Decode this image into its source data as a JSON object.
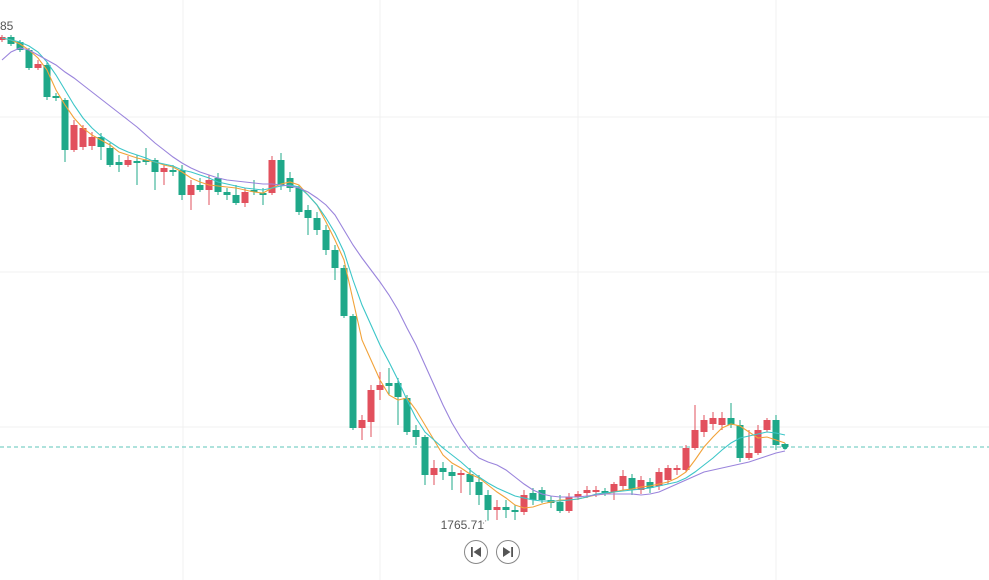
{
  "chart_data": {
    "type": "candlestick",
    "ylim": [
      1736,
      2026
    ],
    "up_color": "#e2505d",
    "down_color": "#1fa889",
    "open": [
      2006,
      2007.5,
      2005,
      2001,
      1992,
      1993.5,
      1978,
      1976,
      1951,
      1952.5,
      1953,
      1957.5,
      1952,
      1945,
      1943.5,
      1945.5,
      1946,
      1946,
      1940,
      1941,
      1941,
      1928.5,
      1933.5,
      1931,
      1937,
      1930,
      1928.5,
      1924.5,
      1931,
      1929.5,
      1929.5,
      1946,
      1937,
      1932,
      1921,
      1917,
      1911,
      1901,
      1892,
      1868,
      1812,
      1815,
      1831,
      1834.5,
      1834.5,
      1827,
      1811,
      1807.5,
      1788.5,
      1792,
      1790,
      1788.5,
      1789,
      1785,
      1778.5,
      1771,
      1772.5,
      1771,
      1770,
      1779.5,
      1781,
      1776,
      1775,
      1770.5,
      1777.5,
      1779.5,
      1780,
      1780.5,
      1780,
      1783,
      1787,
      1781,
      1785,
      1783,
      1786,
      1791,
      1791,
      1802,
      1810,
      1814,
      1813.5,
      1817,
      1813.5,
      1797,
      1799.5,
      1811,
      1816,
      1804
    ],
    "high": [
      2008.5,
      2008.5,
      2006,
      2002,
      1996,
      1995,
      1979.5,
      1977,
      1966,
      1963.5,
      1960,
      1959.5,
      1954.5,
      1948.5,
      1948,
      1948.5,
      1952,
      1947,
      1944,
      1943.5,
      1943.5,
      1936,
      1937,
      1938.5,
      1939.5,
      1932,
      1933.5,
      1932,
      1936,
      1932,
      1948,
      1949.5,
      1940,
      1933.5,
      1923.5,
      1920,
      1913.5,
      1903.5,
      1893.5,
      1869,
      1818.5,
      1833.5,
      1840,
      1842,
      1837,
      1828.5,
      1813.5,
      1808.5,
      1796,
      1795,
      1793.5,
      1791,
      1792,
      1788.5,
      1781,
      1776,
      1776,
      1773.5,
      1781,
      1782,
      1782.5,
      1778,
      1778.5,
      1779.5,
      1780.5,
      1783,
      1783,
      1782,
      1785,
      1791,
      1789,
      1788,
      1787,
      1792,
      1793.5,
      1793.5,
      1803.5,
      1823.5,
      1818.5,
      1820,
      1820,
      1824.5,
      1816,
      1811,
      1813.5,
      1817,
      1818.5,
      1804.5
    ],
    "low": [
      2005,
      2003,
      2000,
      1991,
      1991,
      1976,
      1975.5,
      1945,
      1950,
      1951,
      1951,
      1946,
      1942.5,
      1940,
      1942.5,
      1933.5,
      1943.5,
      1931,
      1933.5,
      1938,
      1926,
      1921,
      1930,
      1923.5,
      1928.5,
      1926,
      1923.5,
      1922.5,
      1928.5,
      1923.5,
      1928.5,
      1931,
      1930,
      1918.5,
      1908.5,
      1908.5,
      1898.5,
      1886,
      1867,
      1811,
      1806,
      1807.5,
      1826,
      1828.5,
      1813.5,
      1808.5,
      1803.5,
      1783.5,
      1783.5,
      1786,
      1781,
      1779.5,
      1778.5,
      1773.5,
      1765.71,
      1766,
      1767,
      1766,
      1768.5,
      1773.5,
      1774.5,
      1772,
      1769.5,
      1769.5,
      1776,
      1777,
      1777.5,
      1778,
      1776,
      1781,
      1778.5,
      1779,
      1779.5,
      1781,
      1784,
      1788.5,
      1790,
      1801,
      1807.5,
      1811,
      1811,
      1812,
      1795,
      1796,
      1798.5,
      1810,
      1801,
      1802
    ],
    "close": [
      2007.5,
      2004,
      2001,
      1992,
      1994,
      1977.5,
      1977,
      1951,
      1963.5,
      1962,
      1957.5,
      1952.5,
      1943.5,
      1943.5,
      1946,
      1944.5,
      1945,
      1940,
      1942,
      1940,
      1928.5,
      1933.5,
      1931,
      1936,
      1930,
      1928.5,
      1924.5,
      1930,
      1930,
      1928.5,
      1946,
      1933.5,
      1932,
      1920,
      1917,
      1911,
      1901,
      1892,
      1868,
      1812,
      1816,
      1831,
      1833.5,
      1833,
      1827.5,
      1810,
      1807.5,
      1788.5,
      1792,
      1790,
      1788,
      1789.5,
      1785,
      1778.5,
      1771,
      1772.5,
      1771,
      1770,
      1778.5,
      1776,
      1776,
      1774.5,
      1770.5,
      1777.5,
      1779,
      1781,
      1781,
      1779.5,
      1784,
      1788,
      1781,
      1786,
      1782,
      1790,
      1792,
      1792,
      1802,
      1811,
      1816,
      1817,
      1817,
      1813.5,
      1797,
      1799.5,
      1811,
      1816,
      1803.5,
      1802.5
    ],
    "moving_averages": [
      {
        "color": "#f2a33a",
        "values": [
          2007,
          2006,
          2004,
          2001,
          1997,
          1991,
          1981,
          1973.5,
          1967,
          1962,
          1958.5,
          1956,
          1953.5,
          1950,
          1948.5,
          1947,
          1946,
          1945,
          1943.5,
          1942.5,
          1940,
          1937,
          1935,
          1933.5,
          1933,
          1932.5,
          1932,
          1931,
          1930,
          1929.5,
          1932,
          1934,
          1935,
          1933.5,
          1928.5,
          1923.5,
          1915,
          1906,
          1896,
          1876,
          1856,
          1846,
          1836,
          1828.5,
          1826,
          1827,
          1821,
          1813.5,
          1806,
          1798.5,
          1794.5,
          1792,
          1789,
          1787,
          1783.5,
          1780,
          1777,
          1773.5,
          1772,
          1772.5,
          1774,
          1775,
          1776,
          1776,
          1776.5,
          1777.5,
          1778.5,
          1779,
          1780,
          1781,
          1781.5,
          1782.5,
          1783,
          1784,
          1785,
          1787,
          1790,
          1796,
          1802.5,
          1807.5,
          1812,
          1814,
          1813,
          1810,
          1807,
          1807.5,
          1806,
          1804.5
        ]
      },
      {
        "color": "#3cc6c8",
        "values": [
          2007,
          2006,
          2005,
          2003,
          2000,
          1995,
          1988.5,
          1981,
          1973.5,
          1967,
          1962,
          1958,
          1955,
          1952,
          1950,
          1948.5,
          1947,
          1945,
          1944,
          1943,
          1941,
          1940,
          1938.5,
          1937,
          1935,
          1934,
          1933,
          1932,
          1931.5,
          1931,
          1932,
          1933,
          1933.5,
          1932.5,
          1928.5,
          1923.5,
          1917,
          1909.5,
          1900,
          1886,
          1873.5,
          1863.5,
          1853.5,
          1845,
          1836,
          1826,
          1817,
          1810,
          1806,
          1802,
          1798.5,
          1795,
          1791,
          1787.5,
          1784.5,
          1782,
          1780,
          1778,
          1777,
          1776,
          1775.5,
          1775.5,
          1775.5,
          1776,
          1776.5,
          1777.5,
          1779,
          1779.5,
          1780,
          1780.5,
          1781,
          1781.5,
          1782,
          1783,
          1784,
          1785,
          1787,
          1790,
          1793.5,
          1797,
          1801,
          1804.5,
          1807,
          1808,
          1809,
          1810,
          1809.5,
          1808.5
        ]
      },
      {
        "color": "#9a84dc",
        "values": [
          1996,
          2000,
          2002,
          2001,
          1998.5,
          1996,
          1993.5,
          1990,
          1987,
          1983.5,
          1980,
          1976.5,
          1973,
          1969.5,
          1966,
          1962.5,
          1958.5,
          1954.5,
          1951,
          1947.5,
          1944.5,
          1942,
          1940,
          1938.5,
          1937,
          1936,
          1935.5,
          1935,
          1934.5,
          1934,
          1934,
          1933.5,
          1933,
          1932,
          1930,
          1927,
          1923.5,
          1918.5,
          1911,
          1903.5,
          1897,
          1891,
          1885,
          1878.5,
          1871,
          1862,
          1853.5,
          1843.5,
          1833.5,
          1823.5,
          1814.5,
          1807,
          1801,
          1797,
          1795,
          1793.5,
          1791,
          1787.5,
          1784,
          1781,
          1779,
          1778,
          1777.5,
          1777.5,
          1777.5,
          1778,
          1778.5,
          1779,
          1779,
          1779,
          1779,
          1778.5,
          1779,
          1780,
          1782,
          1784,
          1786,
          1788,
          1790,
          1791,
          1792,
          1793,
          1794,
          1795,
          1796.5,
          1798,
          1799.5,
          1800.5
        ]
      }
    ],
    "annotations": [
      "85"
    ]
  }
}
